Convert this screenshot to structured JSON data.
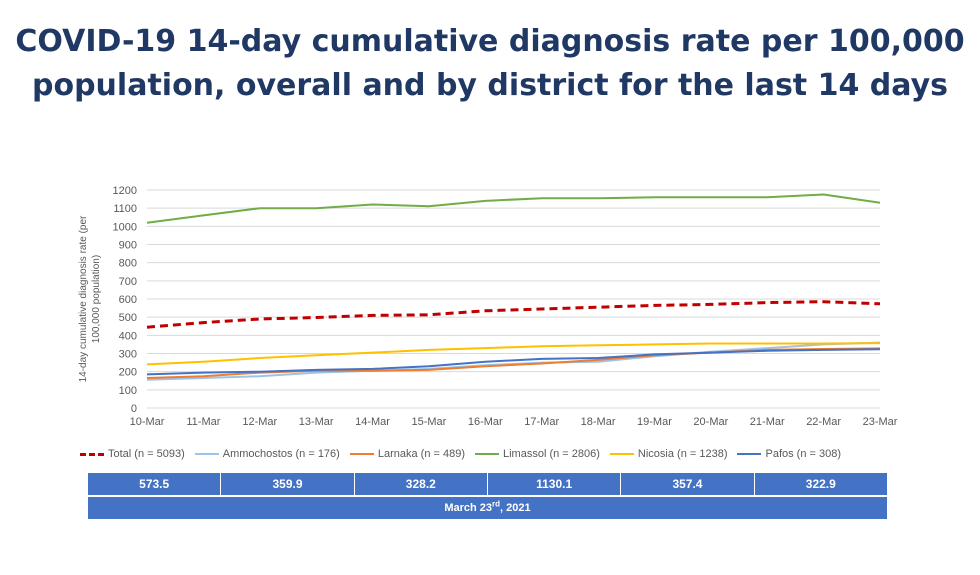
{
  "title": {
    "line1": "COVID-19 14-day cumulative diagnosis rate per 100,000",
    "line2": "population, overall and by district for the last 14 days"
  },
  "chart_data": {
    "type": "line",
    "ylabel": "14-day cumulative diagnosis rate (per 100,000 population)",
    "ylabel_lines": [
      "14-day cumulative diagnosis rate (per",
      "100,000 population)"
    ],
    "xlabel": "",
    "ylim": [
      0,
      1200
    ],
    "yticks": [
      0,
      100,
      200,
      300,
      400,
      500,
      600,
      700,
      800,
      900,
      1000,
      1100,
      1200
    ],
    "grid": true,
    "legend_position": "bottom",
    "categories": [
      "10-Mar",
      "11-Mar",
      "12-Mar",
      "13-Mar",
      "14-Mar",
      "15-Mar",
      "16-Mar",
      "17-Mar",
      "18-Mar",
      "19-Mar",
      "20-Mar",
      "21-Mar",
      "22-Mar",
      "23-Mar"
    ],
    "series": [
      {
        "name": "Total (n = 5093)",
        "color": "#c00000",
        "dashed": true,
        "values": [
          445,
          470,
          490,
          498,
          510,
          513,
          535,
          545,
          555,
          565,
          570,
          580,
          585,
          573.5
        ]
      },
      {
        "name": "Ammochostos (n = 176)",
        "color": "#9dc3e6",
        "dashed": false,
        "values": [
          155,
          165,
          175,
          195,
          205,
          215,
          235,
          250,
          255,
          285,
          310,
          330,
          350,
          359.9
        ]
      },
      {
        "name": "Larnaka (n = 489)",
        "color": "#ed7d31",
        "dashed": false,
        "values": [
          165,
          175,
          195,
          205,
          205,
          210,
          230,
          245,
          265,
          290,
          305,
          320,
          325,
          328.2
        ]
      },
      {
        "name": "Limassol (n = 2806)",
        "color": "#70ad47",
        "dashed": false,
        "values": [
          1020,
          1060,
          1100,
          1100,
          1120,
          1110,
          1140,
          1155,
          1155,
          1160,
          1160,
          1160,
          1175,
          1130.1
        ]
      },
      {
        "name": "Nicosia (n = 1238)",
        "color": "#ffc000",
        "dashed": false,
        "values": [
          240,
          255,
          275,
          290,
          305,
          320,
          330,
          340,
          345,
          350,
          355,
          355,
          355,
          357.4
        ]
      },
      {
        "name": "Pafos (n = 308)",
        "color": "#4472c4",
        "dashed": false,
        "values": [
          185,
          195,
          200,
          210,
          215,
          230,
          255,
          270,
          275,
          295,
          305,
          315,
          320,
          322.9
        ]
      }
    ]
  },
  "summary": {
    "values": [
      "573.5",
      "359.9",
      "328.2",
      "1130.1",
      "357.4",
      "322.9"
    ],
    "date_main": "March 23",
    "date_sup": "rd",
    "date_year": ", 2021"
  }
}
